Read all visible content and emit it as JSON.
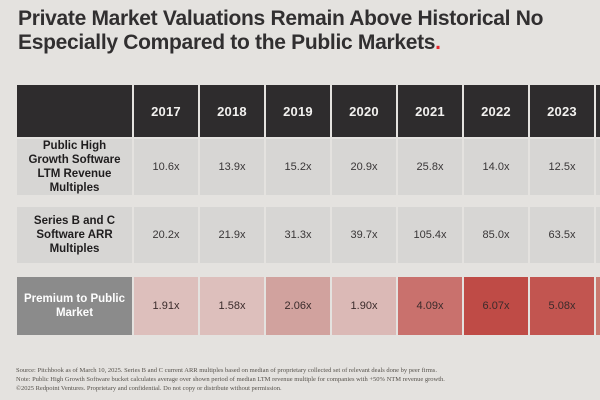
{
  "title": {
    "line1": "Private Market Valuations Remain Above Historical No",
    "line2_text": "Especially Compared to the Public Markets",
    "line2_accent": "."
  },
  "chart_data": {
    "type": "table",
    "title": "Private Market Valuations Remain Above Historical No / Especially Compared to the Public Markets.",
    "columns": [
      "2017",
      "2018",
      "2019",
      "2020",
      "2021",
      "2022",
      "2023"
    ],
    "rows": [
      {
        "label": "Public High Growth Software LTM Revenue Multiples",
        "values": [
          "10.6x",
          "13.9x",
          "15.2x",
          "20.9x",
          "25.8x",
          "14.0x",
          "12.5x"
        ]
      },
      {
        "label": "Series B and C Software ARR Multiples",
        "values": [
          "20.2x",
          "21.9x",
          "31.3x",
          "39.7x",
          "105.4x",
          "85.0x",
          "63.5x"
        ]
      },
      {
        "label": "Premium to Public Market",
        "values": [
          "1.91x",
          "1.58x",
          "2.06x",
          "1.90x",
          "4.09x",
          "6.07x",
          "5.08x"
        ]
      }
    ],
    "layout_hints": "heatmap shading on Premium to Public Market row; rightmost column clipped at image edge"
  },
  "colors": {
    "background": "#e4e2df",
    "title_text": "#312f30",
    "accent_red": "#e8262c",
    "header_bg": "#2e2c2d",
    "header_text": "#f2f1ef",
    "cell_bg": "#d7d6d4",
    "premium_label_bg": "#8b8b8b",
    "premium_cells": [
      "#ddbfbc",
      "#ddbfbc",
      "#d1a29e",
      "#dbb9b6",
      "#c9716d",
      "#bf4b46",
      "#c25550"
    ],
    "premium_clipped": "#c9796f"
  },
  "footer": {
    "lines": [
      "Source: Pitchbook as of March 10, 2025. Series B and C current ARR multiples based on median of proprietary collected set of relevant deals done by peer firms.",
      "Note: Public High Growth Software bucket calculates average over shown period of median LTM revenue multiple for companies with +50% NTM revenue growth.",
      "©2025 Redpoint Ventures. Proprietary and confidential. Do not copy or distribute without permission."
    ]
  }
}
